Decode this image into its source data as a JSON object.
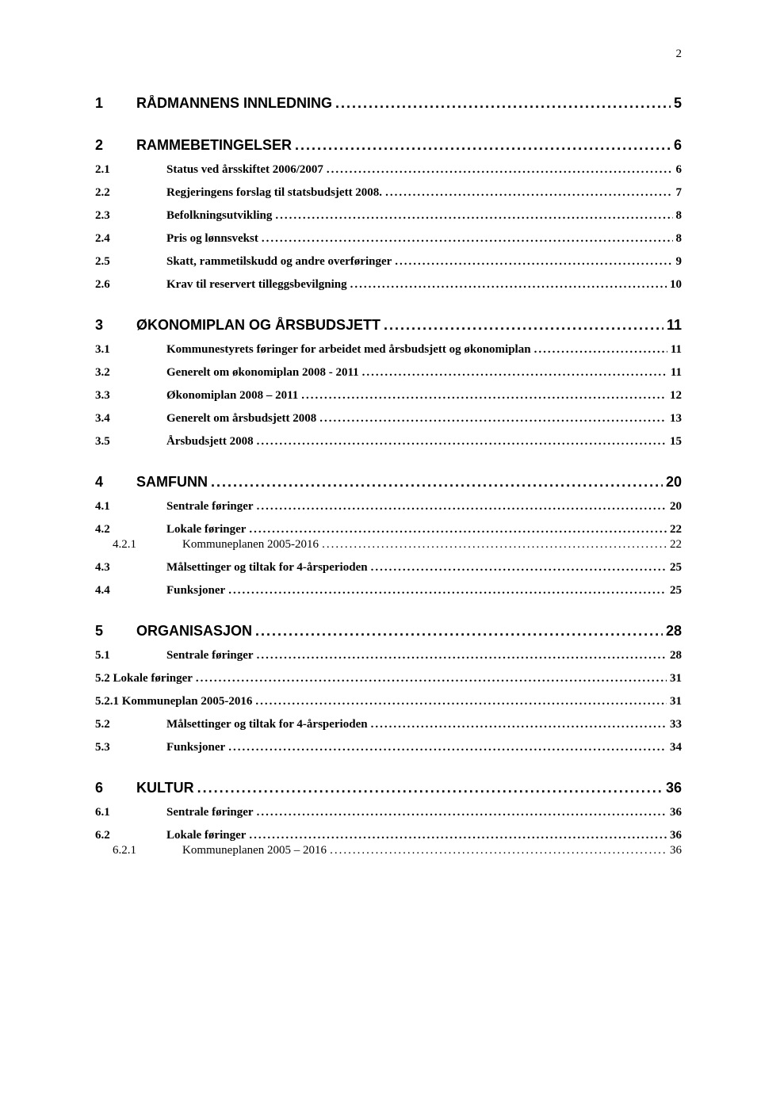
{
  "page_number": "2",
  "toc": [
    {
      "level": 1,
      "num": "1",
      "title": "RÅDMANNENS INNLEDNING",
      "page": "5"
    },
    {
      "level": 1,
      "num": "2",
      "title": "RAMMEBETINGELSER",
      "page": "6"
    },
    {
      "level": 2,
      "num": "2.1",
      "title": "Status ved årsskiftet 2006/2007",
      "page": "6"
    },
    {
      "level": 2,
      "num": "2.2",
      "title": "Regjeringens forslag til statsbudsjett 2008.",
      "page": "7"
    },
    {
      "level": 2,
      "num": "2.3",
      "title": "Befolkningsutvikling",
      "page": "8"
    },
    {
      "level": 2,
      "num": "2.4",
      "title": "Pris og lønnsvekst",
      "page": "8"
    },
    {
      "level": 2,
      "num": "2.5",
      "title": "Skatt, rammetilskudd og andre overføringer",
      "page": "9"
    },
    {
      "level": 2,
      "num": "2.6",
      "title": "Krav til reservert tilleggsbevilgning",
      "page": "10"
    },
    {
      "level": 1,
      "num": "3",
      "title": "ØKONOMIPLAN OG ÅRSBUDSJETT",
      "page": "11"
    },
    {
      "level": 2,
      "num": "3.1",
      "title": "Kommunestyrets føringer for arbeidet med årsbudsjett og økonomiplan",
      "page": "11"
    },
    {
      "level": 2,
      "num": "3.2",
      "title": "Generelt om økonomiplan 2008 - 2011",
      "page": "11"
    },
    {
      "level": 2,
      "num": "3.3",
      "title": "Økonomiplan 2008 – 2011",
      "page": "12"
    },
    {
      "level": 2,
      "num": "3.4",
      "title": "Generelt om årsbudsjett 2008",
      "page": "13"
    },
    {
      "level": 2,
      "num": "3.5",
      "title": "Årsbudsjett 2008",
      "page": "15"
    },
    {
      "level": 1,
      "num": "4",
      "title": "SAMFUNN",
      "page": "20"
    },
    {
      "level": 2,
      "num": "4.1",
      "title": "Sentrale føringer",
      "page": "20"
    },
    {
      "level": 2,
      "num": "4.2",
      "title": "Lokale føringer",
      "page": "22"
    },
    {
      "level": 3,
      "num": "4.2.1",
      "title": "Kommuneplanen 2005-2016",
      "page": "22"
    },
    {
      "level": 2,
      "num": "4.3",
      "title": "Målsettinger og tiltak for 4-årsperioden",
      "page": "25"
    },
    {
      "level": 2,
      "num": "4.4",
      "title": "Funksjoner",
      "page": "25"
    },
    {
      "level": 1,
      "num": "5",
      "title": "ORGANISASJON",
      "page": "28"
    },
    {
      "level": 2,
      "num": "5.1",
      "title": "Sentrale føringer",
      "page": "28"
    },
    {
      "level": 2,
      "num": "5.2 Lokale føringer",
      "title": "",
      "page": "31",
      "nonum_inline": true
    },
    {
      "level": 2,
      "num": "5.2.1  Kommuneplan 2005-2016",
      "title": "",
      "page": "31",
      "nonum_inline": true
    },
    {
      "level": 2,
      "num": "5.2",
      "title": "Målsettinger og tiltak for 4-årsperioden",
      "page": "33"
    },
    {
      "level": 2,
      "num": "5.3",
      "title": "Funksjoner",
      "page": "34"
    },
    {
      "level": 1,
      "num": "6",
      "title": "KULTUR",
      "page": "36"
    },
    {
      "level": 2,
      "num": "6.1",
      "title": "Sentrale føringer",
      "page": "36"
    },
    {
      "level": 2,
      "num": "6.2",
      "title": "Lokale føringer",
      "page": "36"
    },
    {
      "level": 3,
      "num": "6.2.1",
      "title": "Kommuneplanen 2005 – 2016",
      "page": "36"
    }
  ]
}
